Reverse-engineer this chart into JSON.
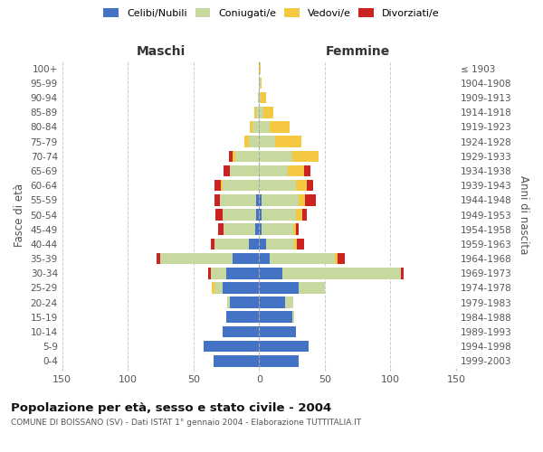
{
  "age_groups": [
    "0-4",
    "5-9",
    "10-14",
    "15-19",
    "20-24",
    "25-29",
    "30-34",
    "35-39",
    "40-44",
    "45-49",
    "50-54",
    "55-59",
    "60-64",
    "65-69",
    "70-74",
    "75-79",
    "80-84",
    "85-89",
    "90-94",
    "95-99",
    "100+"
  ],
  "birth_years": [
    "1999-2003",
    "1994-1998",
    "1989-1993",
    "1984-1988",
    "1979-1983",
    "1974-1978",
    "1969-1973",
    "1964-1968",
    "1959-1963",
    "1954-1958",
    "1949-1953",
    "1944-1948",
    "1939-1943",
    "1934-1938",
    "1929-1933",
    "1924-1928",
    "1919-1923",
    "1914-1918",
    "1909-1913",
    "1904-1908",
    "≤ 1903"
  ],
  "male_celibe": [
    35,
    42,
    28,
    25,
    22,
    28,
    25,
    20,
    8,
    3,
    2,
    2,
    0,
    0,
    0,
    0,
    0,
    0,
    0,
    0,
    0
  ],
  "male_coniugato": [
    0,
    0,
    0,
    0,
    2,
    6,
    12,
    55,
    26,
    24,
    26,
    28,
    28,
    22,
    18,
    8,
    5,
    2,
    1,
    0,
    0
  ],
  "male_vedovo": [
    0,
    0,
    0,
    0,
    0,
    2,
    0,
    0,
    0,
    0,
    0,
    0,
    1,
    0,
    2,
    3,
    2,
    2,
    0,
    0,
    0
  ],
  "male_divorziato": [
    0,
    0,
    0,
    0,
    0,
    0,
    2,
    3,
    3,
    4,
    5,
    4,
    5,
    5,
    3,
    0,
    0,
    0,
    0,
    0,
    0
  ],
  "female_celibe": [
    30,
    38,
    28,
    25,
    20,
    30,
    18,
    8,
    5,
    2,
    2,
    2,
    0,
    0,
    0,
    0,
    0,
    0,
    0,
    0,
    0
  ],
  "female_coniugato": [
    0,
    0,
    0,
    2,
    6,
    20,
    90,
    50,
    22,
    24,
    26,
    28,
    28,
    22,
    25,
    12,
    8,
    3,
    1,
    1,
    0
  ],
  "female_vedovo": [
    0,
    0,
    0,
    0,
    0,
    0,
    0,
    2,
    2,
    2,
    5,
    5,
    8,
    12,
    20,
    20,
    15,
    8,
    4,
    1,
    1
  ],
  "female_divorziato": [
    0,
    0,
    0,
    0,
    0,
    0,
    2,
    5,
    5,
    2,
    3,
    8,
    5,
    5,
    0,
    0,
    0,
    0,
    0,
    0,
    0
  ],
  "colors": {
    "celibe": "#4472c4",
    "coniugato": "#c8d9a0",
    "vedovo": "#f5c842",
    "divorziato": "#cc2222"
  },
  "title": "Popolazione per età, sesso e stato civile - 2004",
  "subtitle": "COMUNE DI BOISSANO (SV) - Dati ISTAT 1° gennaio 2004 - Elaborazione TUTTITALIA.IT",
  "xlabel_left": "Maschi",
  "xlabel_right": "Femmine",
  "ylabel_left": "Fasce di età",
  "ylabel_right": "Anni di nascita",
  "xlim": 150,
  "legend_labels": [
    "Celibi/Nubili",
    "Coniugati/e",
    "Vedovi/e",
    "Divorziati/e"
  ]
}
